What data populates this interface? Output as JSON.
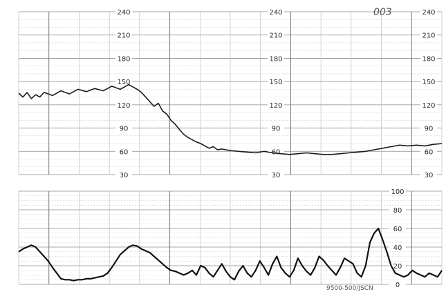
{
  "chart_data": [
    {
      "type": "line",
      "name": "fetal-heart-rate-panel",
      "title": "",
      "xlabel": "",
      "ylabel": "",
      "ylim": [
        30,
        240
      ],
      "yticks": [
        "240",
        "210",
        "180",
        "150",
        "120",
        "90",
        "60",
        "30"
      ],
      "grid": true,
      "annotation": "003",
      "series": [
        {
          "color": "#1a1a1a",
          "x": [
            0,
            1,
            2,
            3,
            4,
            5,
            6,
            8,
            10,
            12,
            14,
            16,
            18,
            20,
            22,
            24,
            26,
            28,
            29,
            30,
            31,
            32,
            33,
            34,
            35,
            36,
            37,
            38,
            39,
            40,
            41,
            42,
            43,
            44,
            45,
            46,
            47,
            48,
            50,
            52,
            54,
            56,
            58,
            60,
            62,
            64,
            66,
            68,
            70,
            72,
            74,
            76,
            78,
            80,
            82,
            84,
            86,
            88,
            90,
            92,
            94,
            96,
            98,
            100
          ],
          "y": [
            135,
            130,
            136,
            128,
            133,
            130,
            136,
            132,
            138,
            134,
            140,
            137,
            141,
            138,
            144,
            140,
            146,
            140,
            136,
            130,
            124,
            118,
            122,
            112,
            108,
            100,
            95,
            88,
            82,
            78,
            75,
            72,
            70,
            67,
            64,
            66,
            62,
            63,
            61,
            60,
            59,
            58,
            60,
            58,
            57,
            56,
            57,
            58,
            57,
            56,
            56,
            57,
            58,
            59,
            60,
            62,
            64,
            66,
            68,
            67,
            68,
            67,
            69,
            70
          ]
        }
      ]
    },
    {
      "type": "line",
      "name": "uterine-activity-panel",
      "title": "",
      "xlabel": "",
      "ylabel": "",
      "ylim": [
        0,
        100
      ],
      "yticks": [
        "100",
        "80",
        "60",
        "40",
        "20",
        "0"
      ],
      "grid": true,
      "footer_text": "9500-500/JSCN",
      "series": [
        {
          "color": "#111111",
          "x": [
            0,
            1,
            2,
            3,
            4,
            5,
            6,
            7,
            8,
            9,
            10,
            11,
            12,
            13,
            14,
            15,
            16,
            17,
            18,
            19,
            20,
            21,
            22,
            23,
            24,
            25,
            26,
            27,
            28,
            29,
            30,
            31,
            32,
            33,
            34,
            35,
            36,
            37,
            38,
            39,
            40,
            41,
            42,
            43,
            44,
            45,
            46,
            47,
            48,
            49,
            50,
            51,
            52,
            53,
            54,
            55,
            56,
            57,
            58,
            59,
            60,
            61,
            62,
            63,
            64,
            65,
            66,
            67,
            68,
            69,
            70,
            71,
            72,
            73,
            74,
            75,
            76,
            77,
            78,
            79,
            80,
            81,
            82,
            83,
            84,
            85,
            86,
            87,
            88,
            89,
            90,
            91,
            92,
            93,
            94,
            95,
            96,
            97,
            98,
            99,
            100
          ],
          "y": [
            35,
            38,
            40,
            42,
            40,
            35,
            30,
            25,
            18,
            12,
            6,
            5,
            5,
            4,
            5,
            5,
            6,
            6,
            7,
            8,
            9,
            12,
            18,
            25,
            32,
            36,
            40,
            42,
            41,
            38,
            36,
            34,
            30,
            26,
            22,
            18,
            15,
            14,
            12,
            10,
            12,
            15,
            10,
            20,
            18,
            12,
            8,
            15,
            22,
            14,
            8,
            5,
            14,
            20,
            12,
            8,
            15,
            25,
            18,
            10,
            22,
            30,
            18,
            12,
            8,
            15,
            28,
            20,
            14,
            10,
            18,
            30,
            26,
            20,
            15,
            10,
            18,
            28,
            25,
            22,
            12,
            8,
            20,
            45,
            55,
            60,
            48,
            35,
            20,
            12,
            10,
            8,
            10,
            15,
            12,
            10,
            8,
            12,
            10,
            8,
            15
          ]
        }
      ]
    }
  ]
}
